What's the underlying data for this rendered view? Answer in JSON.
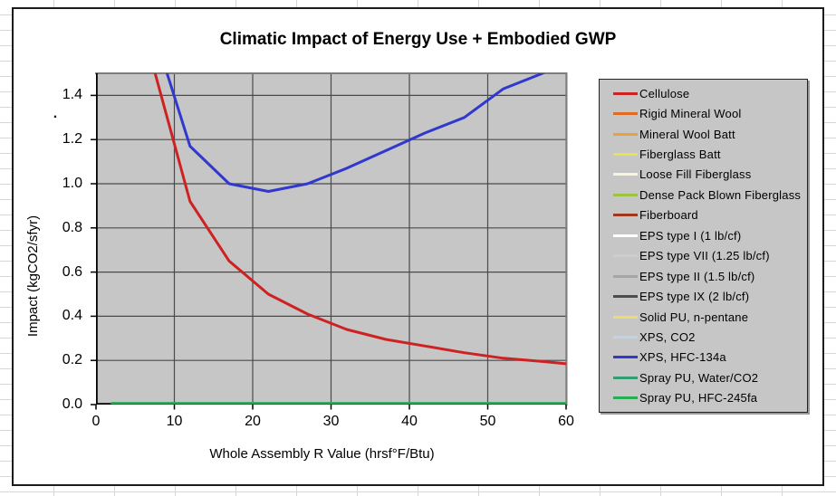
{
  "misc": {
    "stray_dot": "."
  },
  "chart_data": {
    "type": "line",
    "title": "Climatic Impact of Energy Use + Embodied GWP",
    "xlabel": "Whole Assembly R Value (hrsf°F/Btu)",
    "ylabel": "Impact  (kgCO2/sfyr)",
    "xlim": [
      0,
      60
    ],
    "ylim": [
      0,
      1.5
    ],
    "x_ticks": [
      0,
      10,
      20,
      30,
      40,
      50,
      60
    ],
    "y_tick_labels": [
      "0.0",
      "0.2",
      "0.4",
      "0.6",
      "0.8",
      "1.0",
      "1.2",
      "1.4"
    ],
    "grid": true,
    "plot_bg": "#C6C6C6",
    "grid_color": "#4a4a4a",
    "axis_color": "#000000",
    "border_color": "#7d7d7d",
    "legend_position": "right",
    "legend": [
      {
        "label": "Cellulose",
        "color": "#CE2222"
      },
      {
        "label": "Rigid Mineral Wool",
        "color": "#E06B22"
      },
      {
        "label": "Mineral Wool Batt",
        "color": "#E9A23B"
      },
      {
        "label": "Fiberglass Batt",
        "color": "#E6E351"
      },
      {
        "label": "Loose Fill Fiberglass",
        "color": "#F8F4DC"
      },
      {
        "label": "Dense Pack Blown Fiberglass",
        "color": "#9CC43F"
      },
      {
        "label": "Fiberboard",
        "color": "#A0391B"
      },
      {
        "label": "EPS type I (1 lb/cf)",
        "color": "#FFFFFF"
      },
      {
        "label": "EPS type VII (1.25 lb/cf)",
        "color": "#CDCDCD"
      },
      {
        "label": "EPS type II (1.5 lb/cf)",
        "color": "#A5A5A5"
      },
      {
        "label": "EPS type IX (2 lb/cf)",
        "color": "#4D4D4D"
      },
      {
        "label": "Solid PU, n-pentane",
        "color": "#EFDC6E"
      },
      {
        "label": "XPS, CO2",
        "color": "#BFD4EA"
      },
      {
        "label": "XPS, HFC-134a",
        "color": "#3038CE"
      },
      {
        "label": "Spray PU, Water/CO2",
        "color": "#339E71"
      },
      {
        "label": "Spray PU, HFC-245fa",
        "color": "#27AD52"
      }
    ],
    "series": [
      {
        "name": "Cellulose",
        "color": "#CE2222",
        "width": 3,
        "points": [
          [
            7,
            1.57
          ],
          [
            12,
            0.92
          ],
          [
            17,
            0.65
          ],
          [
            22,
            0.5
          ],
          [
            27,
            0.41
          ],
          [
            32,
            0.34
          ],
          [
            37,
            0.295
          ],
          [
            42,
            0.265
          ],
          [
            47,
            0.235
          ],
          [
            52,
            0.21
          ],
          [
            57,
            0.195
          ],
          [
            60,
            0.185
          ]
        ]
      },
      {
        "name": "XPS, HFC-134a",
        "color": "#3038CE",
        "width": 3,
        "points": [
          [
            8,
            1.62
          ],
          [
            12,
            1.17
          ],
          [
            17,
            1.0
          ],
          [
            22,
            0.965
          ],
          [
            27,
            1.0
          ],
          [
            32,
            1.07
          ],
          [
            37,
            1.15
          ],
          [
            42,
            1.23
          ],
          [
            47,
            1.3
          ],
          [
            52,
            1.43
          ],
          [
            57,
            1.5
          ],
          [
            60,
            1.56
          ]
        ]
      },
      {
        "name": "Spray PU, HFC-245fa",
        "color": "#27AD52",
        "width": 2.5,
        "points": [
          [
            2,
            0
          ],
          [
            60,
            0
          ]
        ]
      }
    ]
  }
}
